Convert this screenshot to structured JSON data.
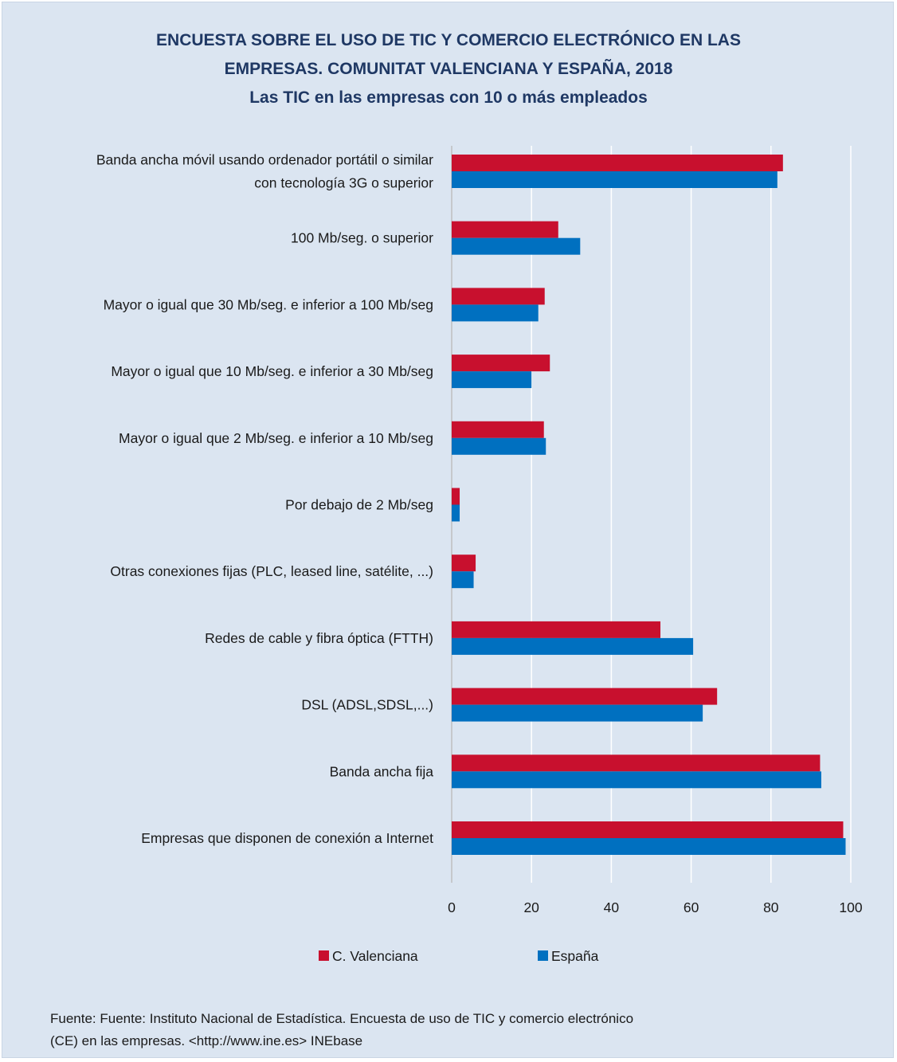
{
  "title": {
    "line1": "ENCUESTA SOBRE EL USO DE TIC Y COMERCIO ELECTRÓNICO EN LAS",
    "line2": "EMPRESAS. COMUNITAT VALENCIANA Y ESPAÑA, 2018",
    "subtitle": "Las TIC en las empresas con 10 o más empleados"
  },
  "source": {
    "line1": "Fuente: Fuente: Instituto Nacional de Estadística. Encuesta de uso de TIC y comercio electrónico",
    "line2": "(CE) en las empresas. <http://www.ine.es> INEbase"
  },
  "colors": {
    "background": "#dbe5f1",
    "title": "#1f3864",
    "valenciana": "#c8102e",
    "espana": "#0070c0",
    "grid": "#ffffff"
  },
  "chart_data": {
    "type": "bar",
    "orientation": "horizontal",
    "categories": [
      [
        "Banda ancha móvil usando ordenador portátil o similar",
        "con tecnología 3G o superior"
      ],
      [
        "100 Mb/seg. o superior"
      ],
      [
        "Mayor o igual que 30 Mb/seg. e inferior a 100 Mb/seg"
      ],
      [
        "Mayor o igual que 10 Mb/seg. e inferior a 30 Mb/seg"
      ],
      [
        "Mayor o igual que 2 Mb/seg. e inferior a 10 Mb/seg"
      ],
      [
        "Por debajo de 2 Mb/seg"
      ],
      [
        "Otras conexiones fijas (PLC, leased line, satélite, ...)"
      ],
      [
        "Redes de cable y fibra óptica (FTTH)"
      ],
      [
        "DSL (ADSL,SDSL,...)"
      ],
      [
        "Banda ancha fija"
      ],
      [
        "Empresas que disponen de conexión a Internet"
      ]
    ],
    "series": [
      {
        "name": "C. Valenciana",
        "color": "#c8102e",
        "values": [
          83.0,
          26.7,
          23.3,
          24.6,
          23.1,
          2.0,
          6.0,
          52.3,
          66.5,
          92.3,
          98.1
        ]
      },
      {
        "name": "España",
        "color": "#0070c0",
        "values": [
          81.6,
          32.2,
          21.7,
          20.0,
          23.6,
          2.0,
          5.5,
          60.5,
          62.9,
          92.6,
          98.7
        ]
      }
    ],
    "xlim": [
      0,
      100
    ],
    "xticks": [
      0,
      20,
      40,
      60,
      80,
      100
    ],
    "grid": true,
    "legend_position": "bottom"
  }
}
